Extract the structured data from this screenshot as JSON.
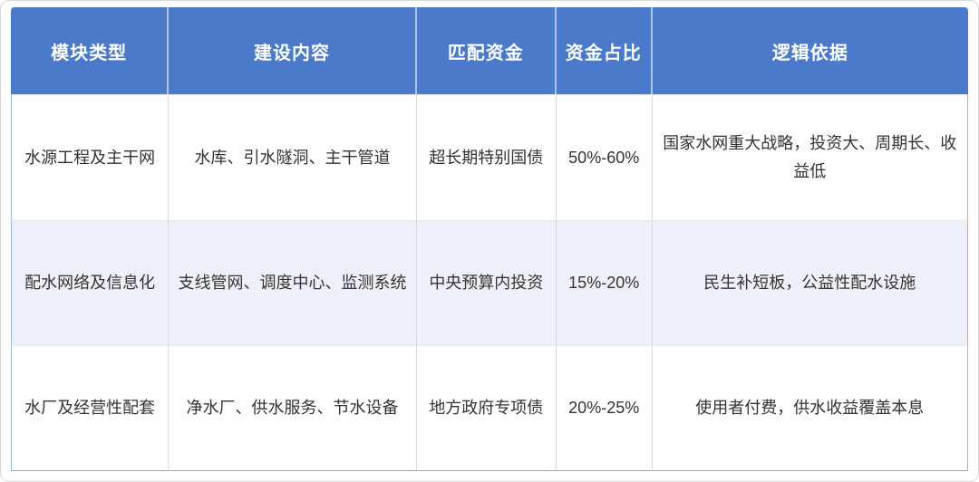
{
  "table": {
    "headers": [
      "模块类型",
      "建设内容",
      "匹配资金",
      "资金占比",
      "逻辑依据"
    ],
    "rows": [
      {
        "module_type": "水源工程及主干网",
        "construction": "水库、引水隧洞、主干管道",
        "funding_source": "超长期特别国债",
        "funding_share": "50%-60%",
        "rationale": "国家水网重大战略，投资大、周期长、收益低"
      },
      {
        "module_type": "配水网络及信息化",
        "construction": "支线管网、调度中心、监测系统",
        "funding_source": "中央预算内投资",
        "funding_share": "15%-20%",
        "rationale": "民生补短板，公益性配水设施"
      },
      {
        "module_type": "水厂及经营性配套",
        "construction": "净水厂、供水服务、节水设备",
        "funding_source": "地方政府专项债",
        "funding_share": "20%-25%",
        "rationale": "使用者付费，供水收益覆盖本息"
      }
    ],
    "colors": {
      "header_bg": "#4a7ac9",
      "header_text": "#ffffff",
      "row_bg": "#ffffff",
      "row_alt_bg": "#edf0f9",
      "body_text": "#333333",
      "outer_border": "#9fb6d4",
      "cell_border": "#d7dae1"
    }
  }
}
